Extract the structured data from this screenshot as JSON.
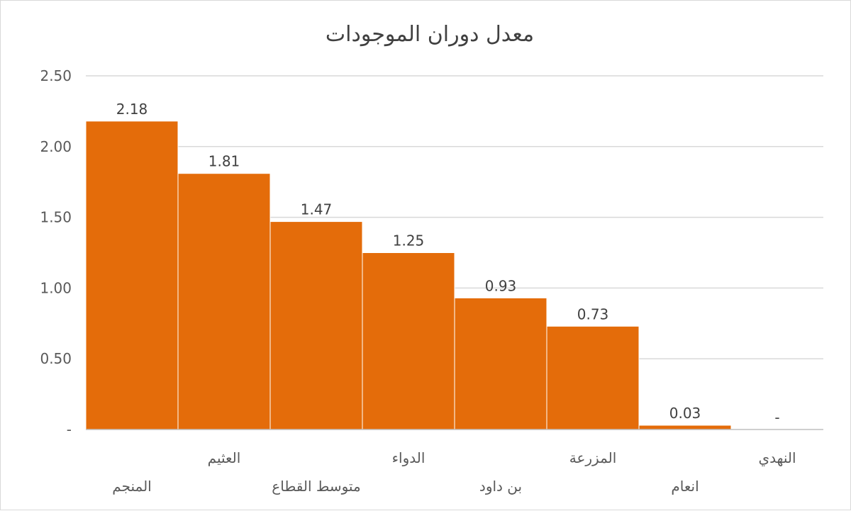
{
  "chart_data": {
    "type": "bar",
    "title": "معدل دوران الموجودات",
    "categories": [
      "المنجم",
      "العثيم",
      "متوسط القطاع",
      "الدواء",
      "بن داود",
      "المزرعة",
      "انعام",
      "النهدي"
    ],
    "values": [
      2.18,
      1.81,
      1.47,
      1.25,
      0.93,
      0.73,
      0.03,
      0
    ],
    "data_labels": [
      "2.18",
      "1.81",
      "1.47",
      "1.25",
      "0.93",
      "0.73",
      "0.03",
      "-"
    ],
    "y_ticks": [
      "-",
      "0.50",
      "1.00",
      "1.50",
      "2.00",
      "2.50"
    ],
    "y_tick_values": [
      0,
      0.5,
      1.0,
      1.5,
      2.0,
      2.5
    ],
    "ylim": [
      0,
      2.5
    ],
    "xlabel": "",
    "ylabel": "",
    "grid": true,
    "legend": "none",
    "colors": {
      "bar": "#E46C0A",
      "grid": "#d9d9d9",
      "axis": "#bfbfbf"
    }
  }
}
